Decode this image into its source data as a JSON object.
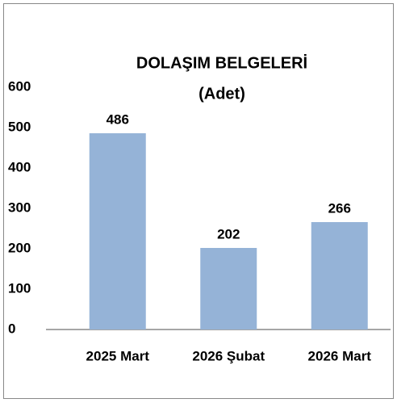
{
  "chart_data": {
    "type": "bar",
    "title": "DOLAŞIM BELGELERİ",
    "subtitle": "(Adet)",
    "categories": [
      "2025 Mart",
      "2026 Şubat",
      "2026 Mart"
    ],
    "values": [
      486,
      202,
      266
    ],
    "color": "#95b3d7",
    "ylim": [
      0,
      600
    ],
    "yticks": [
      0,
      100,
      200,
      300,
      400,
      500,
      600
    ],
    "grid": false
  }
}
